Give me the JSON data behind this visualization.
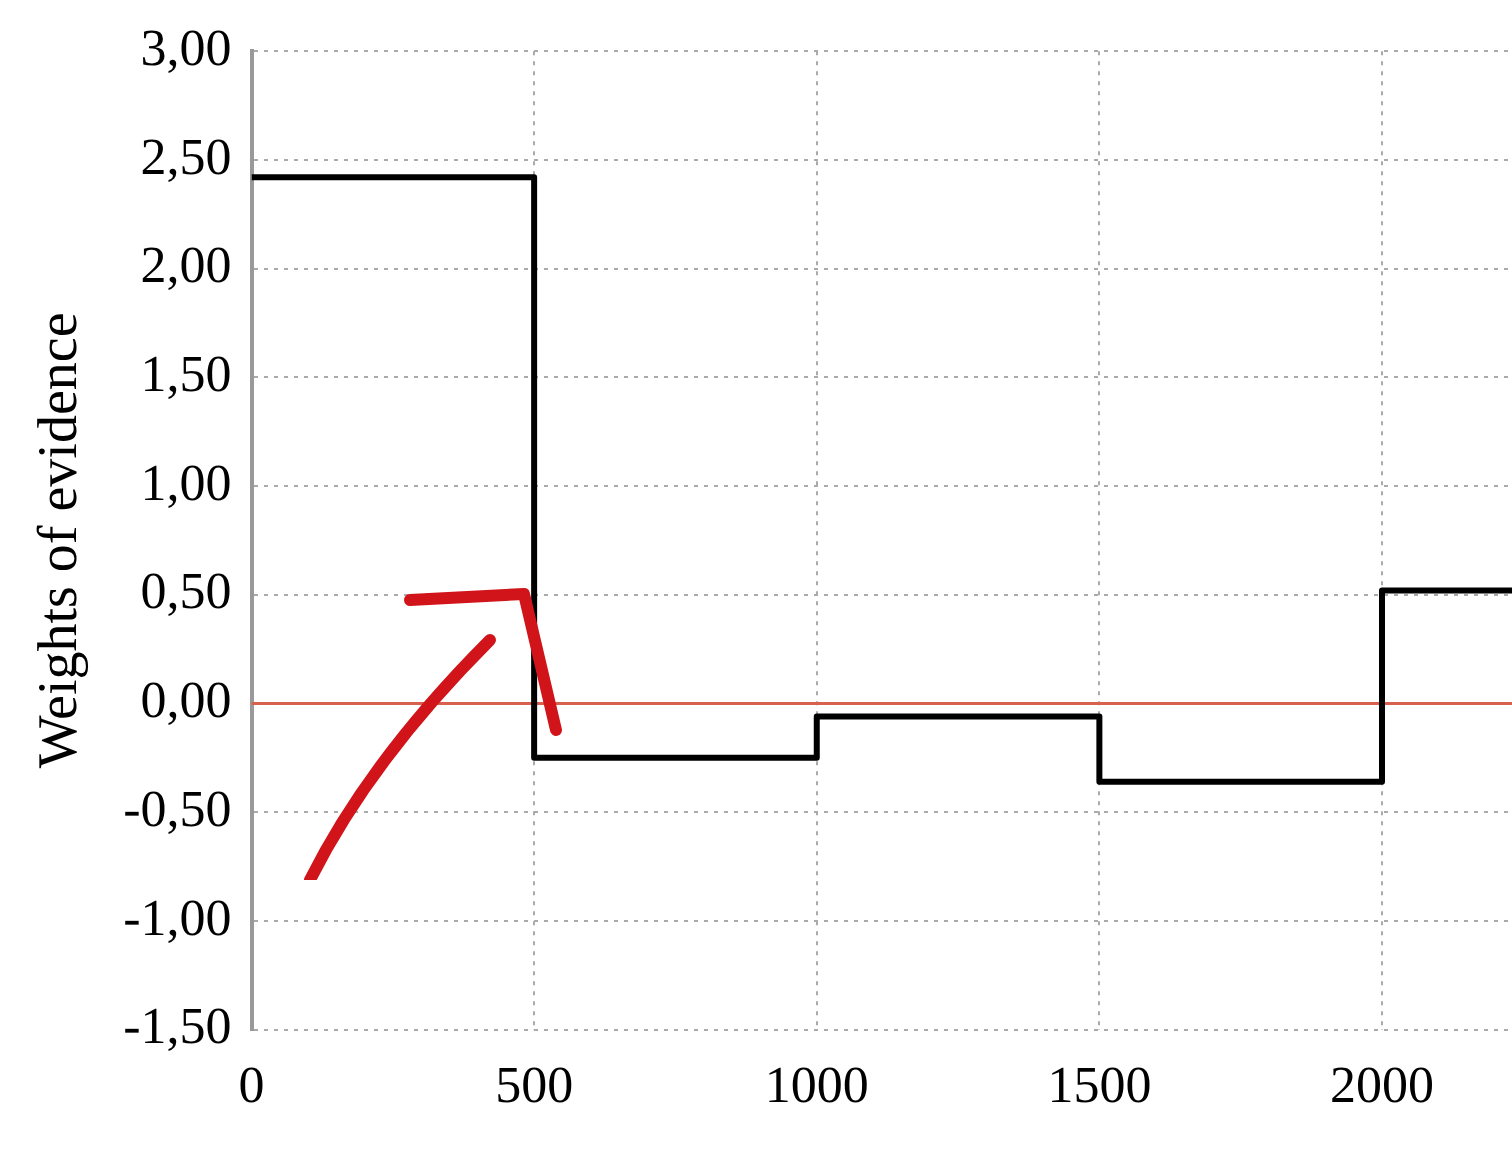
{
  "chart_data": {
    "type": "step",
    "ylabel": "Weights of evidence",
    "x": [
      0,
      500,
      1000,
      1500,
      2000,
      2230
    ],
    "series": [
      {
        "color": "#000000",
        "values": [
          2.42,
          -0.25,
          -0.06,
          -0.36,
          0.52,
          0.52
        ]
      }
    ],
    "xlim": [
      0,
      2230
    ],
    "xticks": [
      0,
      500,
      1000,
      1500,
      2000
    ],
    "ylim": [
      -1.5,
      3
    ],
    "yticks": [
      {
        "value": -1.5,
        "label": "-1,50"
      },
      {
        "value": -1,
        "label": "-1,00"
      },
      {
        "value": -0.5,
        "label": "-0,50"
      },
      {
        "value": 0,
        "label": "0,00"
      },
      {
        "value": 0.5,
        "label": "0,50"
      },
      {
        "value": 1,
        "label": "1,00"
      },
      {
        "value": 1.5,
        "label": "1,50"
      },
      {
        "value": 2,
        "label": "2,00"
      },
      {
        "value": 2.5,
        "label": "2,50"
      },
      {
        "value": 3,
        "label": "3,00"
      }
    ],
    "grid": true,
    "legend": false,
    "ref_lines": [
      {
        "axis": "y",
        "value": 0,
        "label": null,
        "color": "#d9604c"
      }
    ]
  }
}
